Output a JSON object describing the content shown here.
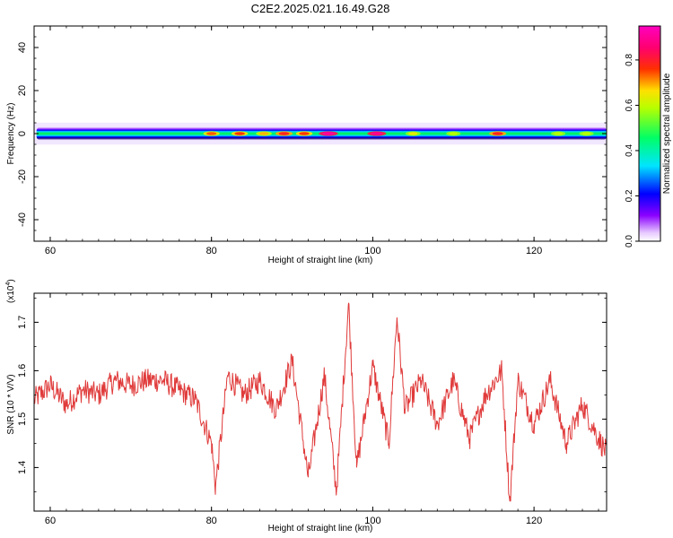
{
  "chart_data": [
    {
      "type": "heatmap",
      "title": "C2E2.2025.021.16.49.G28",
      "xlabel": "Height of straight line (km)",
      "ylabel": "Frequency (Hz)",
      "xlim": [
        58,
        129
      ],
      "ylim": [
        -50,
        50
      ],
      "xticks": [
        "60",
        "80",
        "100",
        "120"
      ],
      "yticks": [
        "40",
        "20",
        "0",
        "-20",
        "-40"
      ],
      "colorbar": {
        "label": "Normalized spectral amplitude",
        "range": [
          0,
          0.95
        ],
        "ticks": [
          "0.0",
          "0.2",
          "0.4",
          "0.6",
          "0.8"
        ],
        "colormap": "rainbow (purple-blue-cyan-green-yellow-red-magenta)"
      },
      "band": {
        "frequency_center": 0,
        "frequency_halfwidth": 3,
        "x_start": 58.3,
        "x_end": 129
      },
      "hotspots": [
        {
          "x": 80,
          "amplitude": 0.7
        },
        {
          "x": 83.5,
          "amplitude": 0.72
        },
        {
          "x": 86.5,
          "amplitude": 0.65
        },
        {
          "x": 89,
          "amplitude": 0.75
        },
        {
          "x": 91.5,
          "amplitude": 0.72
        },
        {
          "x": 94.5,
          "amplitude": 0.9
        },
        {
          "x": 100.5,
          "amplitude": 0.88
        },
        {
          "x": 105,
          "amplitude": 0.6
        },
        {
          "x": 110,
          "amplitude": 0.55
        },
        {
          "x": 115.5,
          "amplitude": 0.75
        },
        {
          "x": 123,
          "amplitude": 0.55
        },
        {
          "x": 126.5,
          "amplitude": 0.55
        }
      ]
    },
    {
      "type": "line",
      "title": "",
      "xlabel": "Height of straight line (km)",
      "ylabel": "SNR (10 * V/V)",
      "scale_label": "(x10",
      "scale_exponent": "4",
      "xlim": [
        58,
        129
      ],
      "ylim": [
        1.31,
        1.76
      ],
      "xticks": [
        "60",
        "80",
        "100",
        "120"
      ],
      "yticks": [
        "1.4",
        "1.5",
        "1.6",
        "1.7"
      ],
      "grid": false,
      "color": "#e03a3a",
      "series": [
        {
          "x": [
            58,
            60,
            62,
            64,
            66,
            68,
            70,
            72,
            74,
            76,
            78,
            80,
            80.5,
            82,
            84,
            86,
            88,
            90,
            92,
            94,
            95.5,
            97,
            98,
            100,
            102,
            103,
            104,
            106,
            108,
            110,
            112,
            114,
            116,
            117,
            118,
            120,
            122,
            124,
            126,
            128,
            129
          ],
          "values": [
            1.54,
            1.57,
            1.53,
            1.56,
            1.55,
            1.58,
            1.57,
            1.58,
            1.58,
            1.56,
            1.54,
            1.45,
            1.36,
            1.59,
            1.55,
            1.58,
            1.52,
            1.62,
            1.38,
            1.59,
            1.35,
            1.74,
            1.4,
            1.61,
            1.45,
            1.71,
            1.52,
            1.58,
            1.49,
            1.58,
            1.46,
            1.55,
            1.6,
            1.33,
            1.58,
            1.49,
            1.58,
            1.45,
            1.53,
            1.46,
            1.43
          ]
        }
      ]
    }
  ]
}
